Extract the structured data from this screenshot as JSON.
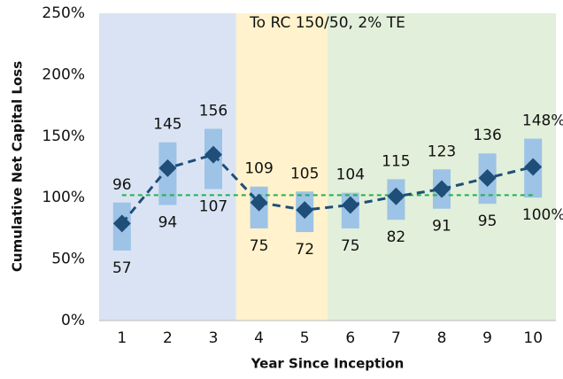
{
  "chart_data": {
    "type": "range",
    "annotation": "To RC 150/50, 2% TE",
    "x_label": "Year Since Inception",
    "y_label": "Cumulative Net Capital Loss",
    "categories": [
      "1",
      "2",
      "3",
      "4",
      "5",
      "6",
      "7",
      "8",
      "9",
      "10"
    ],
    "high": {
      "values": [
        96,
        145,
        156,
        109,
        105,
        104,
        115,
        123,
        136,
        148
      ],
      "value_labels": [
        "96",
        "145",
        "156",
        "109",
        "105",
        "104",
        "115",
        "123",
        "136",
        "148%"
      ]
    },
    "low": {
      "values": [
        57,
        94,
        107,
        75,
        72,
        75,
        82,
        91,
        95,
        100
      ],
      "value_labels": [
        "57",
        "94",
        "107",
        "75",
        "72",
        "75",
        "82",
        "91",
        "95",
        "100%"
      ]
    },
    "median": {
      "values": [
        79,
        124,
        135,
        96,
        90,
        94,
        101,
        107,
        116,
        125
      ],
      "color": "#1f4e79"
    },
    "bar_color": "#9dc3e6",
    "reference_line": {
      "value": 102,
      "color": "#22b14c"
    },
    "regions": [
      {
        "from": "1",
        "to": "3",
        "color": "#dae3f3"
      },
      {
        "from": "4",
        "to": "5",
        "color": "#fff2cc"
      },
      {
        "from": "6",
        "to": "10",
        "color": "#e2efda"
      }
    ],
    "ylim": [
      0,
      250
    ],
    "yticks": [
      {
        "value": 0,
        "label": "0%"
      },
      {
        "value": 50,
        "label": "50%"
      },
      {
        "value": 100,
        "label": "100%"
      },
      {
        "value": 150,
        "label": "150%"
      },
      {
        "value": 200,
        "label": "200%"
      },
      {
        "value": 250,
        "label": "250%"
      }
    ]
  }
}
